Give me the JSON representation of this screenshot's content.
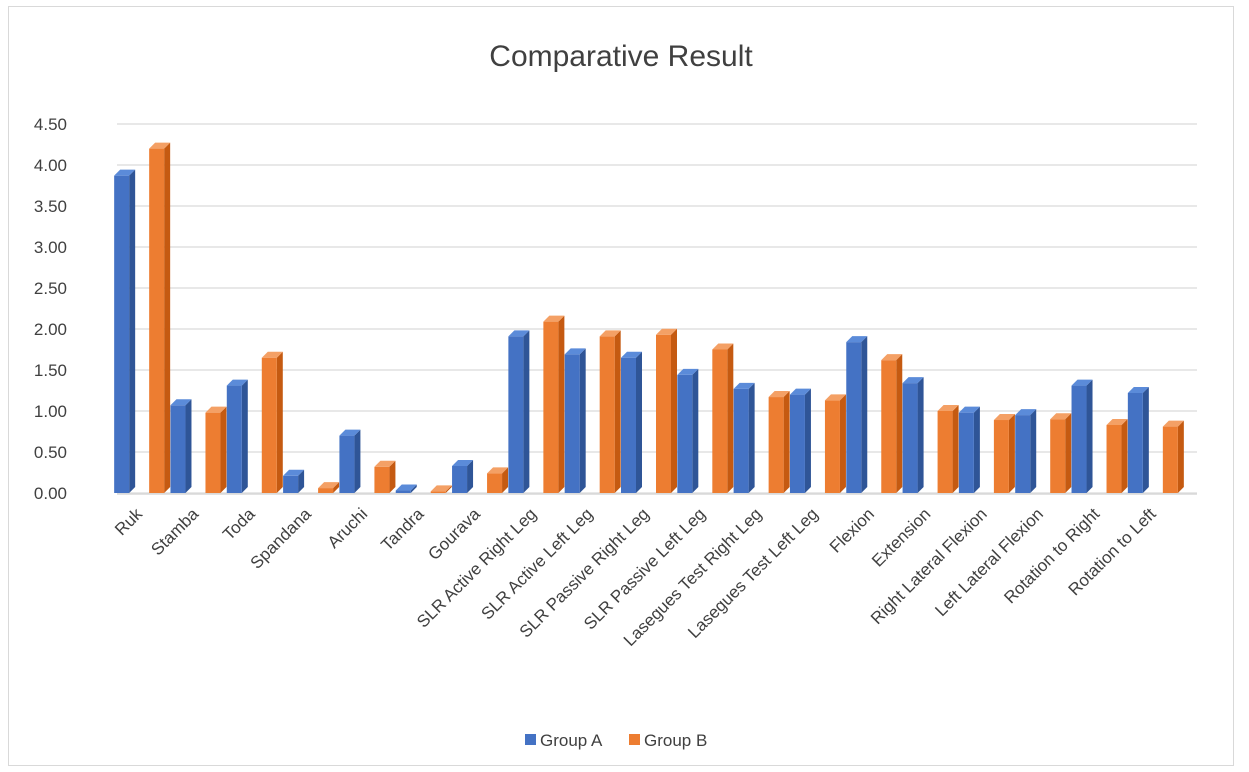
{
  "chart_data": {
    "type": "bar",
    "title": "Comparative Result",
    "categories": [
      "Ruk",
      "Stamba",
      "Toda",
      "Spandana",
      "Aruchi",
      "Tandra",
      "Gourava",
      "SLR Active Right Leg",
      "SLR Active Left Leg",
      "SLR Passive Right Leg",
      "SLR Passive Left Leg",
      "Lasegues Test Right Leg",
      "Lasegues Test Left Leg",
      "Flexion",
      "Extension",
      "Right Lateral Flexion",
      "Left Lateral Flexion",
      "Rotation to Right",
      "Rotation to Left"
    ],
    "series": [
      {
        "name": "Group A",
        "color": "#4472c4",
        "values": [
          3.87,
          1.07,
          1.31,
          0.21,
          0.7,
          0.03,
          0.33,
          1.91,
          1.69,
          1.65,
          1.44,
          1.27,
          1.2,
          1.84,
          1.34,
          0.98,
          0.95,
          1.31,
          1.22
        ]
      },
      {
        "name": "Group B",
        "color": "#ed7d31",
        "values": [
          4.2,
          0.98,
          1.65,
          0.06,
          0.32,
          0.02,
          0.24,
          2.09,
          1.91,
          1.93,
          1.75,
          1.17,
          1.13,
          1.62,
          1.0,
          0.89,
          0.9,
          0.83,
          0.81
        ]
      }
    ],
    "yticks": [
      "0.00",
      "0.50",
      "1.00",
      "1.50",
      "2.00",
      "2.50",
      "3.00",
      "3.50",
      "4.00",
      "4.50"
    ],
    "ylim": [
      0,
      4.5
    ],
    "xlabel": "",
    "ylabel": "",
    "grid": true,
    "legend_position": "bottom",
    "style": "3d-clustered-column"
  }
}
